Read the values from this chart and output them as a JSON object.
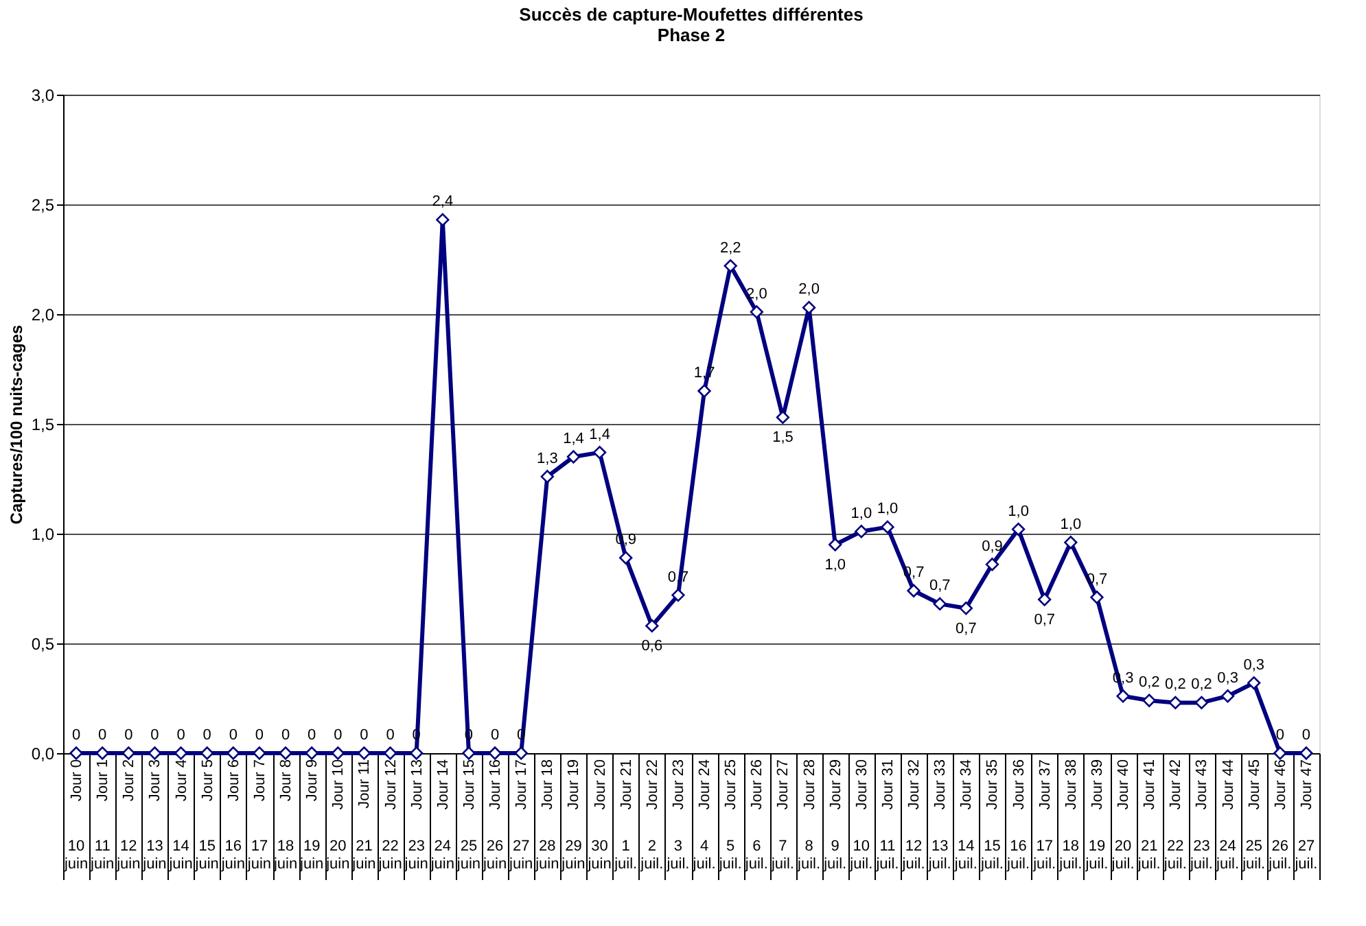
{
  "chart_data": {
    "type": "line",
    "title": "Succès de capture-Moufettes différentes\nPhase 2",
    "ylabel": "Captures/100 nuits-cages",
    "categories": [
      "Jour 0\n10\njuin",
      "Jour 1\n11\njuin",
      "Jour 2\n12\njuin",
      "Jour 3\n13\njuin",
      "Jour 4\n14\njuin",
      "Jour 5\n15\njuin",
      "Jour 6\n16\njuin",
      "Jour 7\n17\njuin",
      "Jour 8\n18\njuin",
      "Jour 9\n19\njuin",
      "Jour 10\n20\njuin",
      "Jour 11\n21\njuin",
      "Jour 12\n22\njuin",
      "Jour 13\n23\njuin",
      "Jour 14\n24\njuin",
      "Jour 15\n25\njuin",
      "Jour 16\n26\njuin",
      "Jour 17\n27\njuin",
      "Jour 18\n28\njuin",
      "Jour 19\n29\njuin",
      "Jour 20\n30\njuin",
      "Jour 21\n1\njuil.",
      "Jour 22\n2\njuil.",
      "Jour 23\n3\njuil.",
      "Jour 24\n4\njuil.",
      "Jour 25\n5\njuil.",
      "Jour 26\n6\njuil.",
      "Jour 27\n7\njuil.",
      "Jour 28\n8\njuil.",
      "Jour 29\n9\njuil.",
      "Jour 30\n10\njuil.",
      "Jour 31\n11\njuil.",
      "Jour 32\n12\njuil.",
      "Jour 33\n13\njuil.",
      "Jour 34\n14\njuil.",
      "Jour 35\n15\njuil.",
      "Jour 36\n16\njuil.",
      "Jour 37\n17\njuil.",
      "Jour 38\n18\njuil.",
      "Jour 39\n19\njuil.",
      "Jour 40\n20\njuil.",
      "Jour 41\n21\njuil.",
      "Jour 42\n22\njuil.",
      "Jour 43\n23\njuil.",
      "Jour 44\n24\njuil.",
      "Jour 45\n25\njuil.",
      "Jour 46\n26\njuil.",
      "Jour 47\n27\njuil."
    ],
    "series": [
      {
        "color": "#000080",
        "values": [
          0,
          0,
          0,
          0,
          0,
          0,
          0,
          0,
          0,
          0,
          0,
          0,
          0,
          0,
          2.43,
          0,
          0,
          0,
          1.26,
          1.35,
          1.37,
          0.89,
          0.58,
          0.72,
          1.65,
          2.22,
          2.01,
          1.53,
          2.03,
          0.95,
          1.01,
          1.03,
          0.74,
          0.68,
          0.66,
          0.86,
          1.02,
          0.7,
          0.96,
          0.71,
          0.26,
          0.24,
          0.23,
          0.23,
          0.26,
          0.32,
          0,
          0
        ],
        "value_labels": [
          "0",
          "0",
          "0",
          "0",
          "0",
          "0",
          "0",
          "0",
          "0",
          "0",
          "0",
          "0",
          "0",
          "0",
          "2,4",
          "0",
          "0",
          "0",
          "1,3",
          "1,4",
          "1,4",
          "0,9",
          "0,6",
          "0,7",
          "1,7",
          "2,2",
          "2,0",
          "1,5",
          "2,0",
          "1,0",
          "1,0",
          "1,0",
          "0,7",
          "0,7",
          "0,7",
          "0,9",
          "1,0",
          "0,7",
          "1,0",
          "0,7",
          "0,3",
          "0,2",
          "0,2",
          "0,2",
          "0,3",
          "0,3",
          "0",
          "0"
        ]
      }
    ],
    "ylim": [
      0,
      3
    ],
    "yticks": [
      {
        "value": 0,
        "label": "0,0"
      },
      {
        "value": 0.5,
        "label": "0,5"
      },
      {
        "value": 1,
        "label": "1,0"
      },
      {
        "value": 1.5,
        "label": "1,5"
      },
      {
        "value": 2,
        "label": "2,0"
      },
      {
        "value": 2.5,
        "label": "2,5"
      },
      {
        "value": 3,
        "label": "3,0"
      }
    ],
    "grid": "y",
    "marker": "diamond",
    "line_style": "solid"
  }
}
